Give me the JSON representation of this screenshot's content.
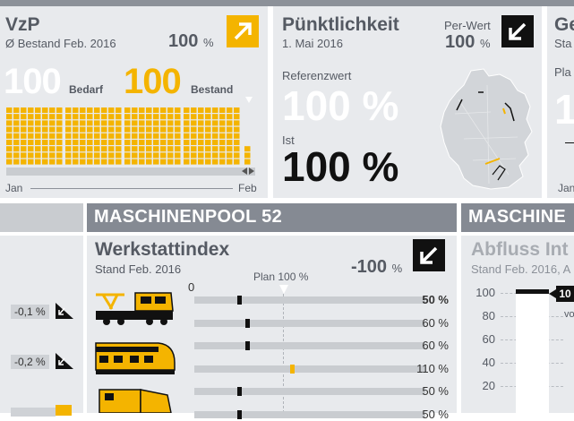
{
  "colors": {
    "accent": "#f4b400",
    "panel": "#e8eaed",
    "header": "#858a93",
    "dark": "#111111"
  },
  "vzp": {
    "title": "VzP",
    "subtitle": "Ø Bestand Feb. 2016",
    "pct_value": "100",
    "pct_unit": "%",
    "bedarf_value": "100",
    "bedarf_label": "Bedarf",
    "bestand_value": "100",
    "bestand_label": "Bestand",
    "axis_start": "Jan",
    "axis_end": "Feb",
    "icon": "arrow-up-right-icon"
  },
  "punkt": {
    "title": "Pünktlichkeit",
    "subtitle": "1. Mai 2016",
    "per_label": "Per-Wert",
    "per_value": "100",
    "per_unit": "%",
    "ref_label": "Referenzwert",
    "ref_value": "100",
    "ref_unit": "%",
    "ist_label": "Ist",
    "ist_value": "100",
    "ist_unit": "%",
    "icon": "arrow-down-left-icon",
    "map": "germany-map"
  },
  "third": {
    "title": "Ge",
    "subtitle": "Sta",
    "plan": "Pla",
    "axis": "Jan"
  },
  "section1": {
    "header": "MASCHINENPOOL 52"
  },
  "section2": {
    "header": "MASCHINE"
  },
  "werkstatt": {
    "title": "Werkstattindex",
    "subtitle": "Stand Feb. 2016",
    "pct_value": "-100",
    "pct_unit": "%",
    "zero_label": "0",
    "plan_label": "Plan 100 %",
    "icon": "arrow-down-left-icon",
    "rows": [
      {
        "value": "50 %",
        "level": 0.5,
        "accent": false
      },
      {
        "value": "60 %",
        "level": 0.6,
        "accent": false
      },
      {
        "value": "60 %",
        "level": 0.6,
        "accent": false
      },
      {
        "value": "110 %",
        "level": 1.1,
        "accent": true
      },
      {
        "value": "50 %",
        "level": 0.5,
        "accent": false
      },
      {
        "value": "50 %",
        "level": 0.5,
        "accent": false
      }
    ]
  },
  "left_deltas": [
    {
      "value": "-0,1 %"
    },
    {
      "value": "-0,2 %"
    }
  ],
  "abfluss": {
    "title": "Abfluss Int",
    "subtitle": "Stand Feb. 2016, A",
    "yticks": [
      "100",
      "80",
      "60",
      "40",
      "20"
    ],
    "bar_level": 100,
    "label": "10",
    "sublabel": "vo"
  }
}
